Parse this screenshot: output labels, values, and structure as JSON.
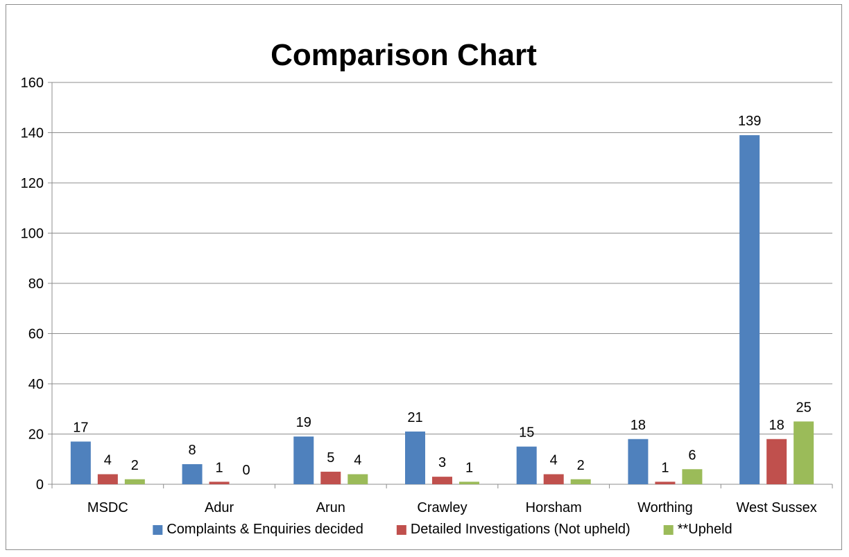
{
  "chart_data": {
    "type": "bar",
    "title": "Comparison Chart",
    "xlabel": "",
    "ylabel": "",
    "ylim": [
      0,
      160
    ],
    "yticks": [
      0,
      20,
      40,
      60,
      80,
      100,
      120,
      140,
      160
    ],
    "grid": true,
    "legend_position": "bottom",
    "categories": [
      "MSDC",
      "Adur",
      "Arun",
      "Crawley",
      "Horsham",
      "Worthing",
      "West Sussex"
    ],
    "series": [
      {
        "name": "Complaints & Enquiries decided",
        "color": "#4f81bd",
        "values": [
          17,
          8,
          19,
          21,
          15,
          18,
          139
        ]
      },
      {
        "name": "Detailed Investigations (Not upheld)",
        "color": "#c0504d",
        "values": [
          4,
          1,
          5,
          3,
          4,
          1,
          18
        ]
      },
      {
        "name": "**Upheld",
        "color": "#9bbb59",
        "values": [
          2,
          0,
          4,
          1,
          2,
          6,
          25
        ]
      }
    ]
  }
}
